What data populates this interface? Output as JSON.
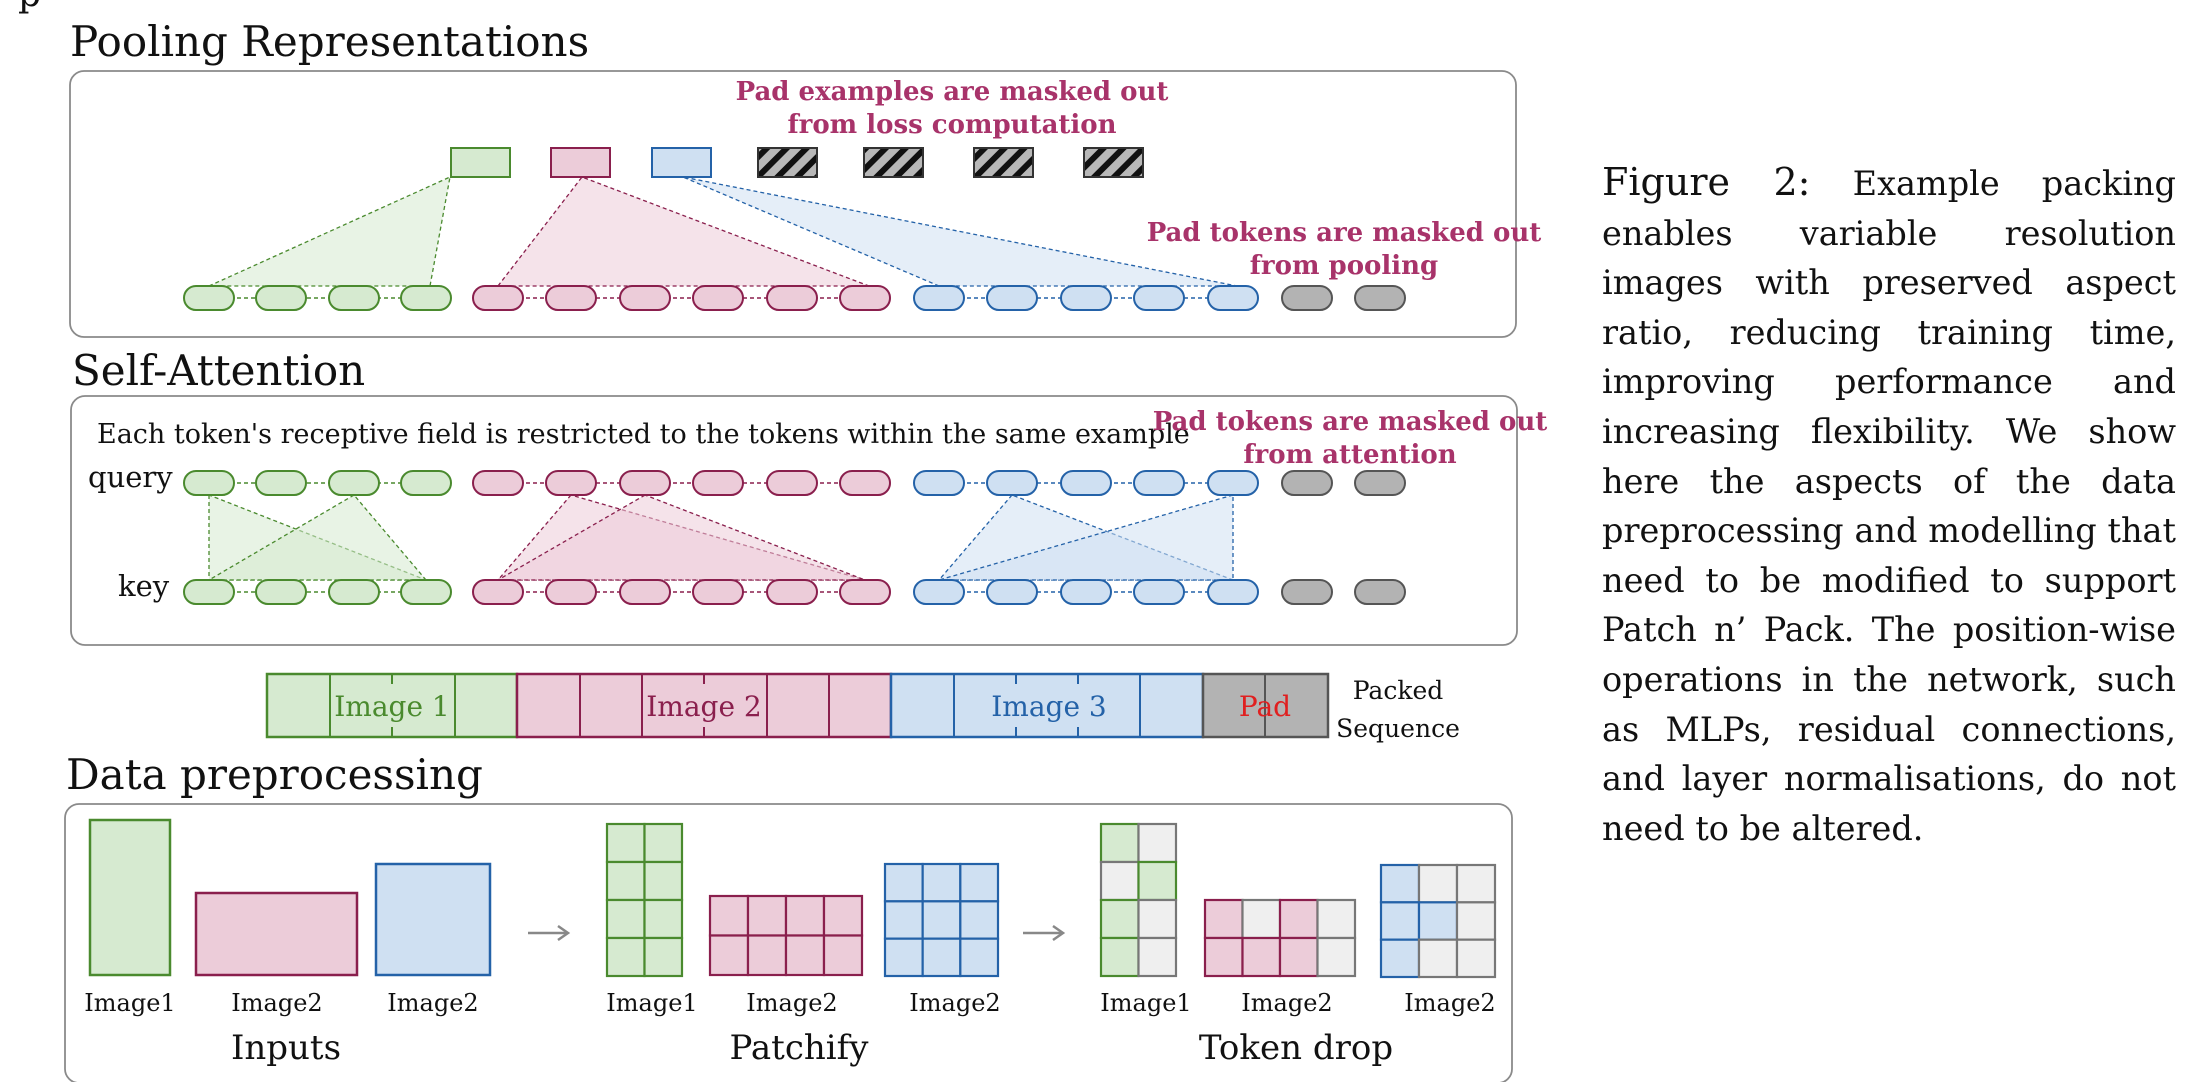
{
  "stray_char": "p",
  "pooling": {
    "title": "Pooling Representations",
    "note_loss": [
      "Pad examples are masked out",
      "from loss computation"
    ],
    "note_pool": [
      "Pad tokens are masked out",
      "from pooling"
    ]
  },
  "attention": {
    "title": "Self-Attention",
    "note": "Each token's receptive field is restricted to the tokens within the same example",
    "note_pad": [
      "Pad tokens are masked out",
      "from attention"
    ],
    "query_label": "query",
    "key_label": "key"
  },
  "packed": {
    "labels": [
      "Image 1",
      "Image 2",
      "Image 3",
      "Pad"
    ],
    "caption": [
      "Packed",
      "Sequence"
    ]
  },
  "preprocessing": {
    "title": "Data preprocessing",
    "image_labels": [
      "Image1",
      "Image2",
      "Image2",
      "Image1",
      "Image2",
      "Image2",
      "Image1",
      "Image2",
      "Image2"
    ],
    "stage_labels": [
      "Inputs",
      "Patchify",
      "Token drop"
    ]
  },
  "caption": {
    "label": "Figure 2:",
    "text": "Example packing enables variable resolution images with preserved aspect ratio, reducing training time, improving performance and increasing flexibility. We show here the aspects of the data preprocessing and modelling that need to be modified to support Patch n’ Pack. The position-wise operations in the network, such as MLPs, residual connections, and layer normalisations, do not need to be altered."
  },
  "colors": {
    "green_fill": "#d6ead0",
    "green_stroke": "#4a8a2e",
    "pink_fill": "#ecccd9",
    "pink_stroke": "#8a1f4d",
    "blue_fill": "#cfe0f2",
    "blue_stroke": "#2462a8",
    "gray_fill": "#b3b3b3",
    "gray_stroke": "#555555",
    "note_text": "#a8336a",
    "pad_text": "#e02020"
  }
}
